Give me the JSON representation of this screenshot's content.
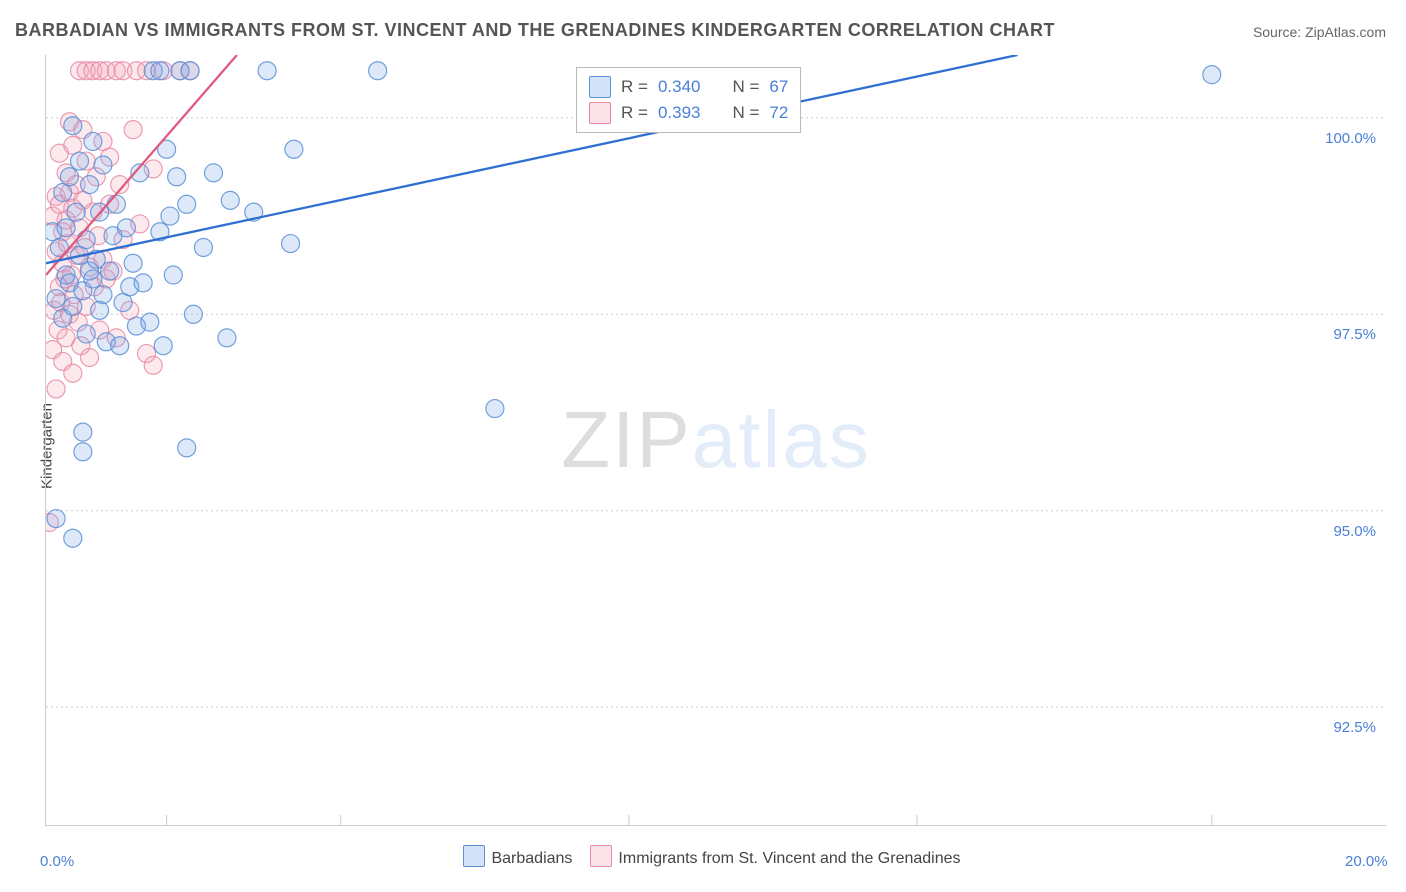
{
  "title": "BARBADIAN VS IMMIGRANTS FROM ST. VINCENT AND THE GRENADINES KINDERGARTEN CORRELATION CHART",
  "source_label": "Source: ZipAtlas.com",
  "y_axis_label": "Kindergarten",
  "watermark": {
    "part1": "ZIP",
    "part2": "atlas"
  },
  "chart": {
    "type": "scatter",
    "background_color": "#ffffff",
    "grid_color": "#cccccc",
    "axis_color": "#cccccc",
    "tick_color": "#cccccc",
    "label_color": "#4a7fd6",
    "title_color": "#555555",
    "title_fontsize": 18,
    "label_fontsize": 15,
    "xlim": [
      0.0,
      20.0
    ],
    "ylim": [
      91.0,
      100.8
    ],
    "x_ticks_major": [
      0.0,
      20.0
    ],
    "x_ticks_minor": [
      1.8,
      4.4,
      8.7,
      13.0,
      17.4
    ],
    "y_ticks": [
      92.5,
      95.0,
      97.5,
      100.0
    ],
    "x_tick_format": "{v}%",
    "y_tick_format": "{v}%",
    "marker_radius": 9,
    "marker_fill_opacity": 0.25,
    "marker_stroke_opacity": 0.85,
    "marker_stroke_width": 1.2,
    "line_width": 2.3,
    "series": [
      {
        "name": "Barbadians",
        "color": "#79a7e6",
        "stroke_color": "#5b8fd6",
        "line_color": "#2f6fd0",
        "r_value": "0.340",
        "n_value": "67",
        "regression": {
          "x1": 0.0,
          "y1": 98.15,
          "x2": 14.5,
          "y2": 100.8
        },
        "points": [
          [
            0.15,
            94.9
          ],
          [
            0.4,
            94.65
          ],
          [
            0.55,
            95.75
          ],
          [
            0.55,
            96.0
          ],
          [
            0.6,
            97.25
          ],
          [
            0.1,
            98.55
          ],
          [
            0.15,
            97.7
          ],
          [
            0.2,
            98.35
          ],
          [
            0.25,
            97.45
          ],
          [
            0.25,
            99.05
          ],
          [
            0.3,
            98.0
          ],
          [
            0.3,
            98.6
          ],
          [
            0.35,
            97.9
          ],
          [
            0.35,
            99.25
          ],
          [
            0.4,
            97.6
          ],
          [
            0.4,
            99.9
          ],
          [
            0.45,
            98.8
          ],
          [
            0.5,
            98.25
          ],
          [
            0.5,
            99.45
          ],
          [
            0.55,
            97.8
          ],
          [
            0.6,
            98.45
          ],
          [
            0.65,
            98.05
          ],
          [
            0.65,
            99.15
          ],
          [
            0.7,
            97.95
          ],
          [
            0.7,
            99.7
          ],
          [
            0.75,
            98.2
          ],
          [
            0.8,
            97.55
          ],
          [
            0.8,
            98.8
          ],
          [
            0.85,
            97.75
          ],
          [
            0.85,
            99.4
          ],
          [
            0.9,
            97.15
          ],
          [
            0.95,
            98.05
          ],
          [
            1.0,
            98.5
          ],
          [
            1.05,
            98.9
          ],
          [
            1.1,
            97.1
          ],
          [
            1.15,
            97.65
          ],
          [
            1.2,
            98.6
          ],
          [
            1.25,
            97.85
          ],
          [
            1.3,
            98.15
          ],
          [
            1.35,
            97.35
          ],
          [
            1.4,
            99.3
          ],
          [
            1.45,
            97.9
          ],
          [
            1.55,
            97.4
          ],
          [
            1.6,
            100.6
          ],
          [
            1.7,
            98.55
          ],
          [
            1.7,
            100.6
          ],
          [
            1.75,
            97.1
          ],
          [
            1.8,
            99.6
          ],
          [
            1.85,
            98.75
          ],
          [
            1.9,
            98.0
          ],
          [
            1.95,
            99.25
          ],
          [
            2.0,
            100.6
          ],
          [
            2.1,
            98.9
          ],
          [
            2.1,
            95.8
          ],
          [
            2.15,
            100.6
          ],
          [
            2.2,
            97.5
          ],
          [
            2.35,
            98.35
          ],
          [
            2.5,
            99.3
          ],
          [
            2.7,
            97.2
          ],
          [
            2.75,
            98.95
          ],
          [
            3.1,
            98.8
          ],
          [
            3.3,
            100.6
          ],
          [
            3.65,
            98.4
          ],
          [
            3.7,
            99.6
          ],
          [
            4.95,
            100.6
          ],
          [
            6.7,
            96.3
          ],
          [
            17.4,
            100.55
          ]
        ]
      },
      {
        "name": "Immigrants from St. Vincent and the Grenadines",
        "color": "#f4a9bb",
        "stroke_color": "#e88ba3",
        "line_color": "#e05a7e",
        "r_value": "0.393",
        "n_value": "72",
        "regression": {
          "x1": 0.0,
          "y1": 98.0,
          "x2": 2.85,
          "y2": 100.8
        },
        "points": [
          [
            0.05,
            94.85
          ],
          [
            0.1,
            97.05
          ],
          [
            0.1,
            98.75
          ],
          [
            0.12,
            97.55
          ],
          [
            0.15,
            96.55
          ],
          [
            0.15,
            98.3
          ],
          [
            0.15,
            99.0
          ],
          [
            0.18,
            97.3
          ],
          [
            0.2,
            97.85
          ],
          [
            0.2,
            98.9
          ],
          [
            0.2,
            99.55
          ],
          [
            0.22,
            97.65
          ],
          [
            0.25,
            96.9
          ],
          [
            0.25,
            98.15
          ],
          [
            0.25,
            98.55
          ],
          [
            0.28,
            97.95
          ],
          [
            0.3,
            97.2
          ],
          [
            0.3,
            98.7
          ],
          [
            0.3,
            99.3
          ],
          [
            0.32,
            98.4
          ],
          [
            0.35,
            97.5
          ],
          [
            0.35,
            99.05
          ],
          [
            0.35,
            99.95
          ],
          [
            0.38,
            98.0
          ],
          [
            0.4,
            96.75
          ],
          [
            0.4,
            98.85
          ],
          [
            0.4,
            99.65
          ],
          [
            0.42,
            97.75
          ],
          [
            0.45,
            98.25
          ],
          [
            0.45,
            99.15
          ],
          [
            0.48,
            97.4
          ],
          [
            0.5,
            100.6
          ],
          [
            0.5,
            98.6
          ],
          [
            0.52,
            97.1
          ],
          [
            0.55,
            98.95
          ],
          [
            0.55,
            99.85
          ],
          [
            0.58,
            98.35
          ],
          [
            0.6,
            97.6
          ],
          [
            0.6,
            100.6
          ],
          [
            0.6,
            99.45
          ],
          [
            0.65,
            98.1
          ],
          [
            0.65,
            96.95
          ],
          [
            0.7,
            100.6
          ],
          [
            0.7,
            98.8
          ],
          [
            0.72,
            97.85
          ],
          [
            0.75,
            99.25
          ],
          [
            0.78,
            98.5
          ],
          [
            0.8,
            97.3
          ],
          [
            0.8,
            100.6
          ],
          [
            0.85,
            99.7
          ],
          [
            0.85,
            98.2
          ],
          [
            0.9,
            100.6
          ],
          [
            0.9,
            97.95
          ],
          [
            0.95,
            98.9
          ],
          [
            0.95,
            99.5
          ],
          [
            1.0,
            98.05
          ],
          [
            1.05,
            97.2
          ],
          [
            1.05,
            100.6
          ],
          [
            1.1,
            99.15
          ],
          [
            1.15,
            98.45
          ],
          [
            1.15,
            100.6
          ],
          [
            1.25,
            97.55
          ],
          [
            1.3,
            99.85
          ],
          [
            1.35,
            100.6
          ],
          [
            1.4,
            98.65
          ],
          [
            1.5,
            97.0
          ],
          [
            1.5,
            100.6
          ],
          [
            1.6,
            96.85
          ],
          [
            1.6,
            99.35
          ],
          [
            1.75,
            100.6
          ],
          [
            2.0,
            100.6
          ],
          [
            2.15,
            100.6
          ]
        ]
      }
    ],
    "legend_box": {
      "top_offset": 12,
      "left_offset": 530
    },
    "bottom_legend": true
  }
}
